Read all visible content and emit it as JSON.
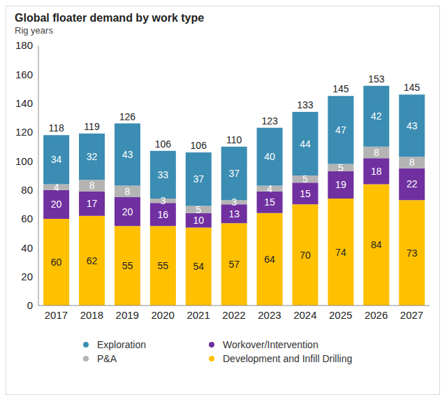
{
  "chart_data": {
    "type": "bar",
    "title": "Global floater demand by work type",
    "subtitle": "Rig years",
    "categories": [
      "2017",
      "2018",
      "2019",
      "2020",
      "2021",
      "2022",
      "2023",
      "2024",
      "2025",
      "2026",
      "2027"
    ],
    "series": [
      {
        "name": "Development and Infill Drilling",
        "color": "#ffc000",
        "values": [
          60,
          62,
          55,
          55,
          54,
          57,
          64,
          70,
          74,
          84,
          73
        ]
      },
      {
        "name": "Workover/Intervention",
        "color": "#7030a0",
        "values": [
          20,
          17,
          20,
          16,
          10,
          13,
          15,
          15,
          19,
          18,
          22
        ]
      },
      {
        "name": "P&A",
        "color": "#b4b4b4",
        "values": [
          4,
          8,
          8,
          3,
          5,
          3,
          4,
          5,
          5,
          8,
          8
        ]
      },
      {
        "name": "Exploration",
        "color": "#3b8db3",
        "values": [
          34,
          32,
          43,
          33,
          37,
          37,
          40,
          44,
          47,
          42,
          43
        ]
      }
    ],
    "totals": [
      118,
      119,
      126,
      106,
      106,
      110,
      123,
      133,
      145,
      153,
      145
    ],
    "ylim": [
      0,
      180
    ],
    "yticks": [
      0,
      20,
      40,
      60,
      80,
      100,
      120,
      140,
      160,
      180
    ],
    "stacked": true,
    "data_labels": true,
    "grid": false,
    "legend": "bottom"
  }
}
